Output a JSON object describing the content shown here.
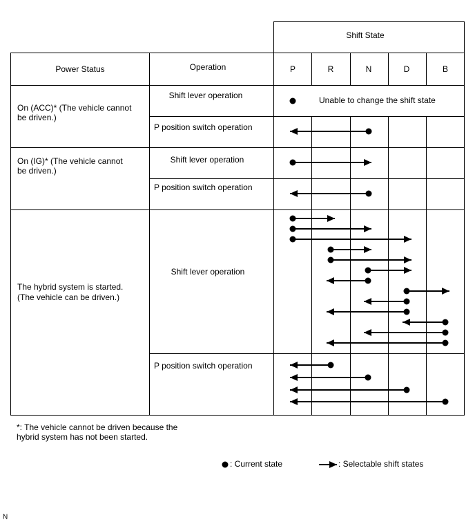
{
  "header": {
    "shift_state": "Shift State",
    "power_status": "Power Status",
    "operation": "Operation",
    "states": [
      "P",
      "R",
      "N",
      "D",
      "B"
    ]
  },
  "rows": [
    {
      "power_status": [
        "On (ACC)* (The vehicle cannot",
        "be driven.)"
      ],
      "operations": [
        "Shift lever operation",
        "P position switch operation"
      ],
      "note": "Unable to change the shift state"
    },
    {
      "power_status": [
        "On (IG)* (The vehicle cannot",
        "be driven.)"
      ],
      "operations": [
        "Shift lever operation",
        "P position switch operation"
      ]
    },
    {
      "power_status": [
        "The hybrid system is started.",
        "(The vehicle can be driven.)"
      ],
      "operations": [
        "Shift lever operation",
        "P position switch operation"
      ]
    }
  ],
  "footnote": [
    "*: The vehicle cannot be driven because the",
    "hybrid system has not been started."
  ],
  "legend": {
    "current": ": Current state",
    "selectable": ": Selectable shift states"
  },
  "figure_code": "N"
}
